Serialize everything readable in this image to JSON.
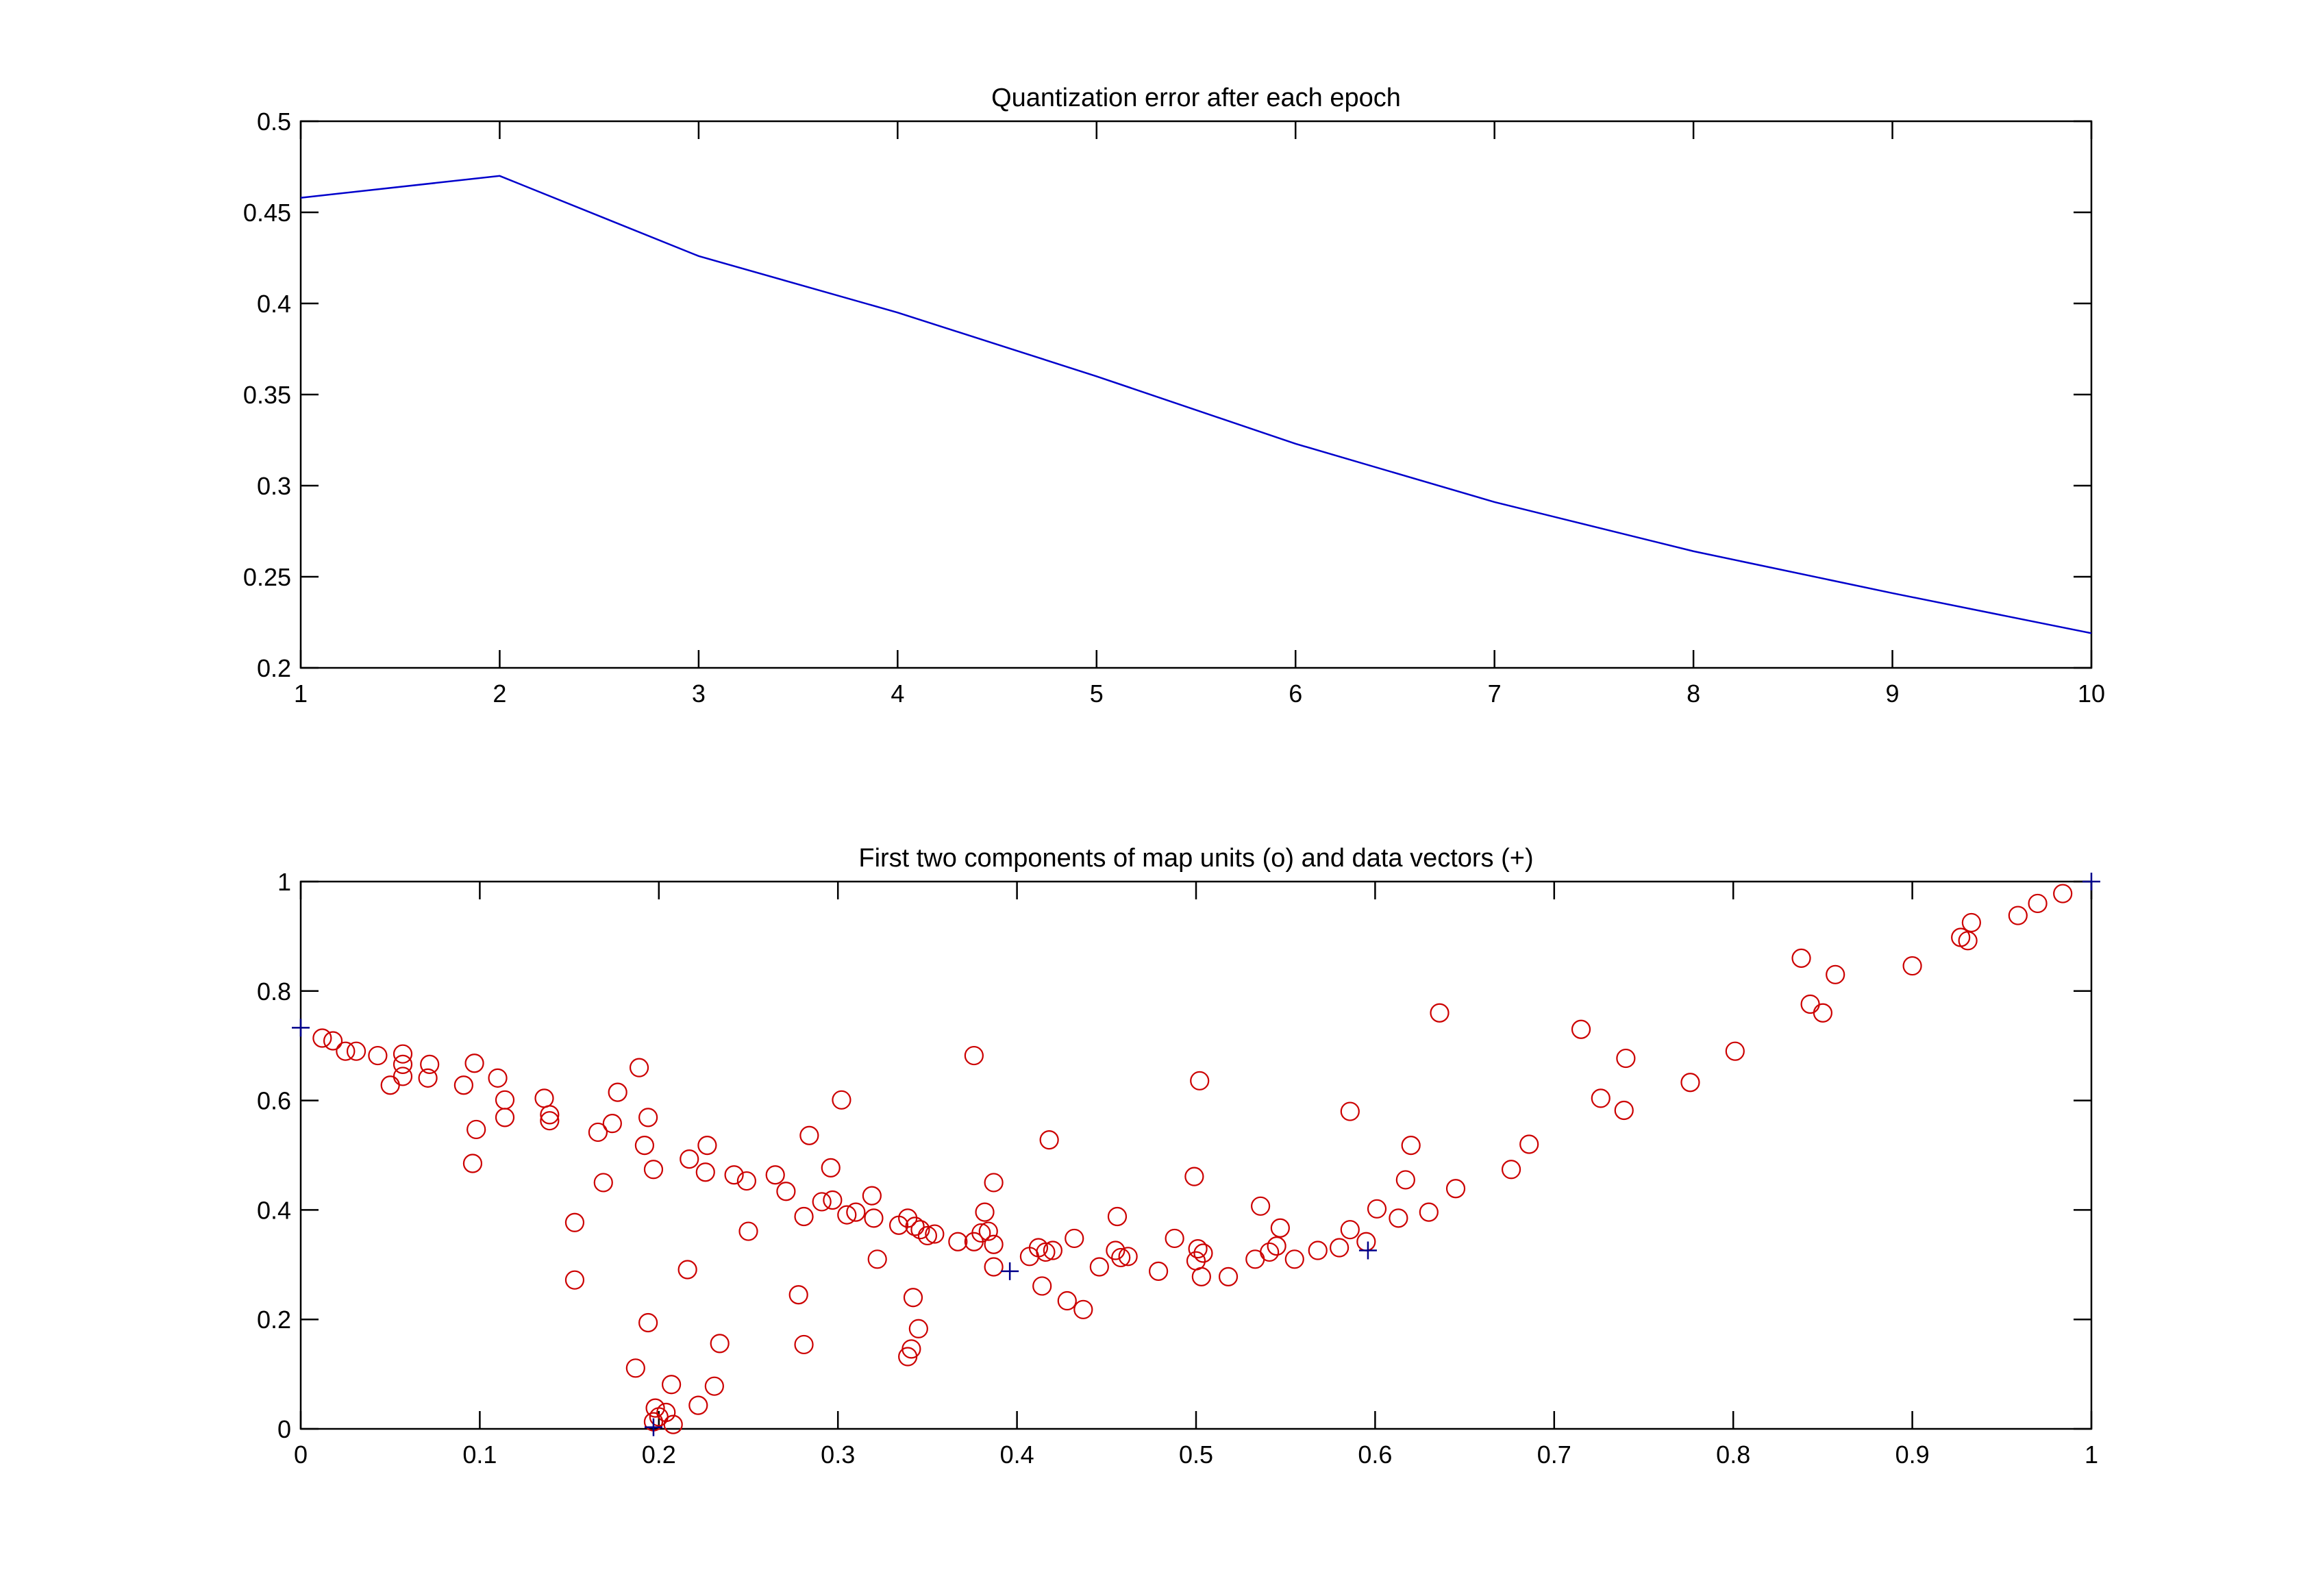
{
  "chart_data": [
    {
      "type": "line",
      "title": "Quantization error after each epoch",
      "xlabel": "",
      "ylabel": "",
      "xlim": [
        1,
        10
      ],
      "ylim": [
        0.2,
        0.5
      ],
      "xticks": [
        "1",
        "2",
        "3",
        "4",
        "5",
        "6",
        "7",
        "8",
        "9",
        "10"
      ],
      "yticks": [
        "0.2",
        "0.25",
        "0.3",
        "0.35",
        "0.4",
        "0.45",
        "0.5"
      ],
      "grid": false,
      "series": [
        {
          "name": "quantization error",
          "color": "#0000cc",
          "x": [
            1,
            2,
            3,
            4,
            5,
            6,
            7,
            8,
            9,
            10
          ],
          "y": [
            0.458,
            0.47,
            0.426,
            0.395,
            0.36,
            0.323,
            0.291,
            0.264,
            0.241,
            0.219
          ]
        }
      ]
    },
    {
      "type": "scatter",
      "title": "First two components of map units (o) and data vectors (+)",
      "xlabel": "",
      "ylabel": "",
      "xlim": [
        0,
        1
      ],
      "ylim": [
        0,
        1
      ],
      "xticks": [
        "0",
        "0.1",
        "0.2",
        "0.3",
        "0.4",
        "0.5",
        "0.6",
        "0.7",
        "0.8",
        "0.9",
        "1"
      ],
      "yticks": [
        "0",
        "0.2",
        "0.4",
        "0.6",
        "0.8",
        "1"
      ],
      "grid": false,
      "series": [
        {
          "name": "map units (o)",
          "marker": "circle",
          "color": "#cc0000",
          "points": [
            [
              0.012,
              0.714
            ],
            [
              0.018,
              0.709
            ],
            [
              0.025,
              0.69
            ],
            [
              0.031,
              0.69
            ],
            [
              0.043,
              0.682
            ],
            [
              0.057,
              0.685
            ],
            [
              0.057,
              0.666
            ],
            [
              0.057,
              0.644
            ],
            [
              0.05,
              0.628
            ],
            [
              0.072,
              0.666
            ],
            [
              0.071,
              0.641
            ],
            [
              0.091,
              0.628
            ],
            [
              0.097,
              0.668
            ],
            [
              0.098,
              0.547
            ],
            [
              0.096,
              0.485
            ],
            [
              0.11,
              0.641
            ],
            [
              0.114,
              0.601
            ],
            [
              0.114,
              0.569
            ],
            [
              0.136,
              0.604
            ],
            [
              0.139,
              0.574
            ],
            [
              0.139,
              0.563
            ],
            [
              0.153,
              0.377
            ],
            [
              0.153,
              0.272
            ],
            [
              0.166,
              0.542
            ],
            [
              0.169,
              0.45
            ],
            [
              0.174,
              0.558
            ],
            [
              0.177,
              0.615
            ],
            [
              0.189,
              0.66
            ],
            [
              0.192,
              0.518
            ],
            [
              0.194,
              0.569
            ],
            [
              0.197,
              0.474
            ],
            [
              0.194,
              0.194
            ],
            [
              0.187,
              0.111
            ],
            [
              0.198,
              0.038
            ],
            [
              0.2,
              0.022
            ],
            [
              0.197,
              0.013
            ],
            [
              0.204,
              0.03
            ],
            [
              0.207,
              0.081
            ],
            [
              0.208,
              0.008
            ],
            [
              0.222,
              0.043
            ],
            [
              0.231,
              0.078
            ],
            [
              0.234,
              0.156
            ],
            [
              0.216,
              0.291
            ],
            [
              0.217,
              0.493
            ],
            [
              0.226,
              0.469
            ],
            [
              0.227,
              0.518
            ],
            [
              0.242,
              0.464
            ],
            [
              0.249,
              0.453
            ],
            [
              0.25,
              0.361
            ],
            [
              0.265,
              0.464
            ],
            [
              0.271,
              0.434
            ],
            [
              0.284,
              0.536
            ],
            [
              0.278,
              0.245
            ],
            [
              0.281,
              0.154
            ],
            [
              0.281,
              0.388
            ],
            [
              0.291,
              0.415
            ],
            [
              0.297,
              0.418
            ],
            [
              0.296,
              0.477
            ],
            [
              0.302,
              0.601
            ],
            [
              0.305,
              0.391
            ],
            [
              0.31,
              0.396
            ],
            [
              0.32,
              0.385
            ],
            [
              0.319,
              0.426
            ],
            [
              0.322,
              0.31
            ],
            [
              0.334,
              0.372
            ],
            [
              0.339,
              0.385
            ],
            [
              0.343,
              0.37
            ],
            [
              0.346,
              0.364
            ],
            [
              0.35,
              0.353
            ],
            [
              0.354,
              0.356
            ],
            [
              0.342,
              0.24
            ],
            [
              0.345,
              0.183
            ],
            [
              0.341,
              0.146
            ],
            [
              0.339,
              0.132
            ],
            [
              0.367,
              0.342
            ],
            [
              0.376,
              0.342
            ],
            [
              0.376,
              0.682
            ],
            [
              0.38,
              0.358
            ],
            [
              0.382,
              0.396
            ],
            [
              0.384,
              0.361
            ],
            [
              0.387,
              0.337
            ],
            [
              0.387,
              0.296
            ],
            [
              0.387,
              0.45
            ],
            [
              0.407,
              0.315
            ],
            [
              0.412,
              0.331
            ],
            [
              0.414,
              0.261
            ],
            [
              0.416,
              0.323
            ],
            [
              0.42,
              0.326
            ],
            [
              0.418,
              0.528
            ],
            [
              0.428,
              0.234
            ],
            [
              0.432,
              0.348
            ],
            [
              0.437,
              0.218
            ],
            [
              0.446,
              0.296
            ],
            [
              0.456,
              0.388
            ],
            [
              0.455,
              0.326
            ],
            [
              0.458,
              0.313
            ],
            [
              0.462,
              0.315
            ],
            [
              0.479,
              0.288
            ],
            [
              0.488,
              0.348
            ],
            [
              0.499,
              0.461
            ],
            [
              0.5,
              0.307
            ],
            [
              0.502,
              0.636
            ],
            [
              0.501,
              0.329
            ],
            [
              0.504,
              0.321
            ],
            [
              0.503,
              0.278
            ],
            [
              0.518,
              0.278
            ],
            [
              0.533,
              0.31
            ],
            [
              0.536,
              0.407
            ],
            [
              0.541,
              0.323
            ],
            [
              0.545,
              0.334
            ],
            [
              0.547,
              0.367
            ],
            [
              0.555,
              0.31
            ],
            [
              0.568,
              0.326
            ],
            [
              0.58,
              0.331
            ],
            [
              0.586,
              0.58
            ],
            [
              0.586,
              0.364
            ],
            [
              0.595,
              0.342
            ],
            [
              0.601,
              0.402
            ],
            [
              0.613,
              0.385
            ],
            [
              0.617,
              0.455
            ],
            [
              0.62,
              0.518
            ],
            [
              0.63,
              0.396
            ],
            [
              0.636,
              0.76
            ],
            [
              0.645,
              0.439
            ],
            [
              0.676,
              0.474
            ],
            [
              0.686,
              0.52
            ],
            [
              0.715,
              0.73
            ],
            [
              0.726,
              0.604
            ],
            [
              0.739,
              0.582
            ],
            [
              0.74,
              0.677
            ],
            [
              0.776,
              0.633
            ],
            [
              0.801,
              0.69
            ],
            [
              0.838,
              0.86
            ],
            [
              0.843,
              0.776
            ],
            [
              0.85,
              0.76
            ],
            [
              0.857,
              0.83
            ],
            [
              0.9,
              0.846
            ],
            [
              0.927,
              0.898
            ],
            [
              0.931,
              0.892
            ],
            [
              0.933,
              0.925
            ],
            [
              0.959,
              0.938
            ],
            [
              0.97,
              0.96
            ],
            [
              0.984,
              0.978
            ]
          ]
        },
        {
          "name": "data vectors (+)",
          "marker": "plus",
          "color": "#00008b",
          "points": [
            [
              0.0,
              0.733
            ],
            [
              0.197,
              0.003
            ],
            [
              0.396,
              0.288
            ],
            [
              0.596,
              0.326
            ],
            [
              1.0,
              1.0
            ]
          ]
        }
      ]
    }
  ]
}
